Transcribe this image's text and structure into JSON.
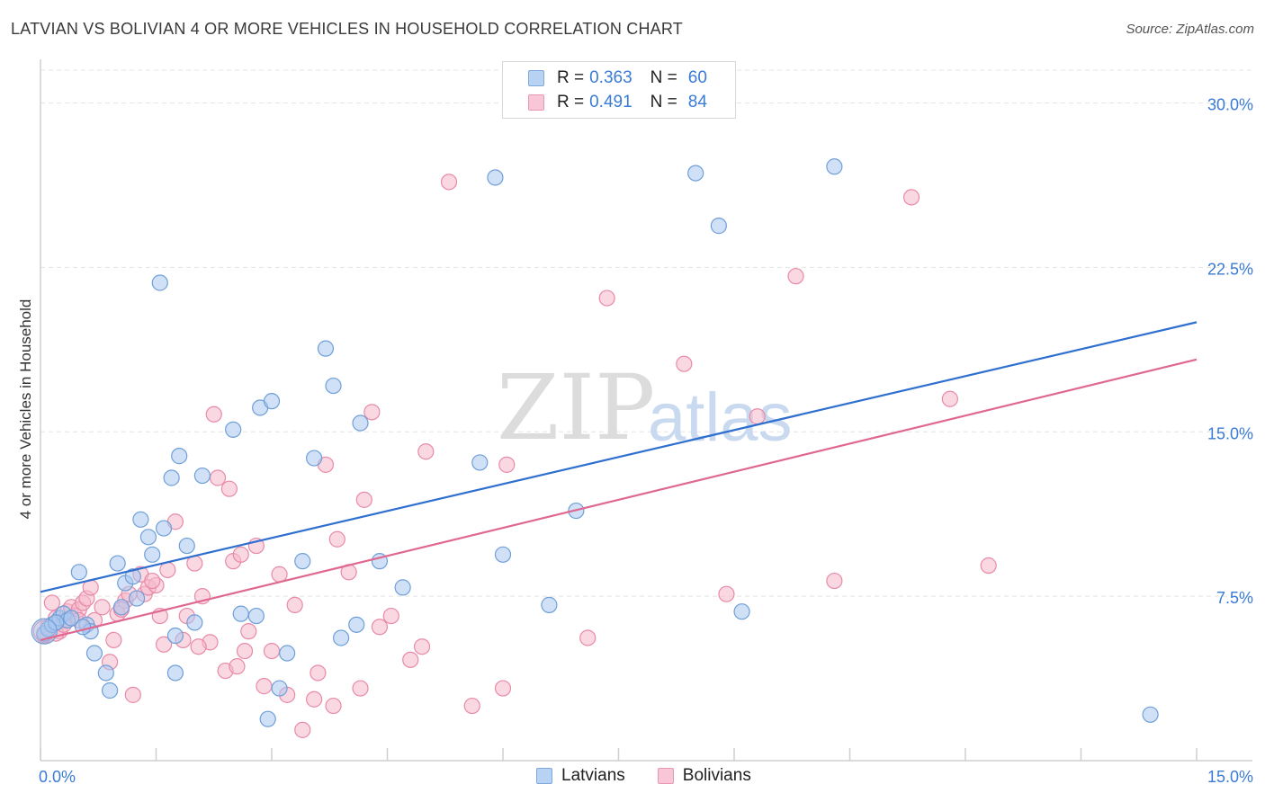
{
  "header": {
    "title": "LATVIAN VS BOLIVIAN 4 OR MORE VEHICLES IN HOUSEHOLD CORRELATION CHART",
    "source": "Source: ZipAtlas.com"
  },
  "legend": {
    "rows": [
      {
        "r_label": "R =",
        "r_value": "0.363",
        "n_label": "N =",
        "n_value": "60"
      },
      {
        "r_label": "R =",
        "r_value": "0.491",
        "n_label": "N =",
        "n_value": "84"
      }
    ]
  },
  "bottom_legend": {
    "latvians": "Latvians",
    "bolivians": "Bolivians"
  },
  "watermark": {
    "zip": "ZIP",
    "atlas": "atlas"
  },
  "colors": {
    "latvian_fill": "#a9c8f0",
    "latvian_stroke": "#6f9fd8",
    "latvian_line": "#2f6fd0",
    "bolivian_fill": "#f6b8cb",
    "bolivian_stroke": "#e88aa8",
    "bolivian_line": "#e06890",
    "tick_label": "#3a7bd5"
  },
  "chart_data": {
    "type": "scatter",
    "title": "LATVIAN VS BOLIVIAN 4 OR MORE VEHICLES IN HOUSEHOLD CORRELATION CHART",
    "xlabel": "",
    "ylabel": "4 or more Vehicles in Household",
    "xlim": [
      0,
      15
    ],
    "ylim": [
      0,
      31.5
    ],
    "x_tick_labels": [
      {
        "value": 0,
        "label": "0.0%"
      },
      {
        "value": 15,
        "label": "15.0%"
      }
    ],
    "y_tick_labels": [
      {
        "value": 7.5,
        "label": "7.5%"
      },
      {
        "value": 15,
        "label": "15.0%"
      },
      {
        "value": 22.5,
        "label": "22.5%"
      },
      {
        "value": 30,
        "label": "30.0%"
      }
    ],
    "grid": "horizontal dashed",
    "legend_position": "top-center",
    "series": [
      {
        "name": "Latvians",
        "r": 0.363,
        "n": 60,
        "trend": [
          [
            0,
            7.7
          ],
          [
            15,
            20.0
          ]
        ],
        "points": [
          [
            0.05,
            5.8
          ],
          [
            0.1,
            6.0
          ],
          [
            0.15,
            6.2
          ],
          [
            0.2,
            6.3
          ],
          [
            0.25,
            6.5
          ],
          [
            0.3,
            6.7
          ],
          [
            0.35,
            6.4
          ],
          [
            0.4,
            6.5
          ],
          [
            0.5,
            8.6
          ],
          [
            0.6,
            6.2
          ],
          [
            0.65,
            5.9
          ],
          [
            0.7,
            4.9
          ],
          [
            0.85,
            4.0
          ],
          [
            0.9,
            3.2
          ],
          [
            1.0,
            9.0
          ],
          [
            1.05,
            7.0
          ],
          [
            1.1,
            8.1
          ],
          [
            1.2,
            8.4
          ],
          [
            1.25,
            7.4
          ],
          [
            1.3,
            11.0
          ],
          [
            1.4,
            10.2
          ],
          [
            1.45,
            9.4
          ],
          [
            1.55,
            21.8
          ],
          [
            1.6,
            10.6
          ],
          [
            1.7,
            12.9
          ],
          [
            1.75,
            4.0
          ],
          [
            1.8,
            13.9
          ],
          [
            1.9,
            9.8
          ],
          [
            2.0,
            6.3
          ],
          [
            2.1,
            13.0
          ],
          [
            2.5,
            15.1
          ],
          [
            2.6,
            6.7
          ],
          [
            2.8,
            6.6
          ],
          [
            2.85,
            16.1
          ],
          [
            3.0,
            16.4
          ],
          [
            3.1,
            3.3
          ],
          [
            3.2,
            4.9
          ],
          [
            3.4,
            9.1
          ],
          [
            3.55,
            13.8
          ],
          [
            3.7,
            18.8
          ],
          [
            3.8,
            17.1
          ],
          [
            3.9,
            5.6
          ],
          [
            4.1,
            6.2
          ],
          [
            4.15,
            15.4
          ],
          [
            4.4,
            9.1
          ],
          [
            4.7,
            7.9
          ],
          [
            5.7,
            13.6
          ],
          [
            5.9,
            26.6
          ],
          [
            6.0,
            9.4
          ],
          [
            6.6,
            7.1
          ],
          [
            6.95,
            11.4
          ],
          [
            2.95,
            1.9
          ],
          [
            1.75,
            5.7
          ],
          [
            0.2,
            6.3
          ],
          [
            0.55,
            6.1
          ],
          [
            8.5,
            26.8
          ],
          [
            8.8,
            24.4
          ],
          [
            9.1,
            6.8
          ],
          [
            10.3,
            27.1
          ],
          [
            14.4,
            2.1
          ]
        ]
      },
      {
        "name": "Bolivians",
        "r": 0.491,
        "n": 84,
        "trend": [
          [
            0,
            5.5
          ],
          [
            15,
            18.3
          ]
        ],
        "points": [
          [
            0.05,
            5.7
          ],
          [
            0.1,
            6.1
          ],
          [
            0.15,
            7.2
          ],
          [
            0.2,
            6.5
          ],
          [
            0.25,
            5.9
          ],
          [
            0.3,
            6.4
          ],
          [
            0.35,
            6.8
          ],
          [
            0.4,
            7.0
          ],
          [
            0.45,
            6.6
          ],
          [
            0.5,
            6.9
          ],
          [
            0.55,
            7.2
          ],
          [
            0.6,
            7.4
          ],
          [
            0.65,
            7.9
          ],
          [
            0.7,
            6.4
          ],
          [
            0.8,
            7.0
          ],
          [
            0.9,
            4.5
          ],
          [
            0.95,
            5.5
          ],
          [
            1.0,
            6.7
          ],
          [
            1.1,
            7.3
          ],
          [
            1.15,
            7.6
          ],
          [
            1.2,
            3.0
          ],
          [
            1.3,
            8.5
          ],
          [
            1.35,
            7.6
          ],
          [
            1.4,
            7.9
          ],
          [
            1.5,
            8.0
          ],
          [
            1.55,
            6.6
          ],
          [
            1.6,
            5.3
          ],
          [
            1.65,
            8.7
          ],
          [
            1.75,
            10.9
          ],
          [
            1.85,
            5.5
          ],
          [
            1.9,
            6.6
          ],
          [
            2.0,
            9.0
          ],
          [
            2.1,
            7.5
          ],
          [
            2.2,
            5.4
          ],
          [
            2.25,
            15.8
          ],
          [
            2.3,
            12.9
          ],
          [
            2.4,
            4.1
          ],
          [
            2.45,
            12.4
          ],
          [
            2.5,
            9.1
          ],
          [
            2.55,
            4.3
          ],
          [
            2.6,
            9.4
          ],
          [
            2.7,
            5.9
          ],
          [
            2.8,
            9.8
          ],
          [
            2.9,
            3.4
          ],
          [
            3.0,
            5.0
          ],
          [
            3.1,
            8.5
          ],
          [
            3.2,
            3.0
          ],
          [
            3.3,
            7.1
          ],
          [
            3.4,
            1.4
          ],
          [
            3.6,
            4.0
          ],
          [
            3.7,
            13.5
          ],
          [
            3.8,
            2.5
          ],
          [
            3.85,
            10.1
          ],
          [
            4.0,
            8.6
          ],
          [
            4.15,
            3.3
          ],
          [
            4.2,
            11.9
          ],
          [
            4.3,
            15.9
          ],
          [
            4.4,
            6.1
          ],
          [
            4.55,
            6.6
          ],
          [
            4.8,
            4.6
          ],
          [
            4.95,
            5.2
          ],
          [
            5.0,
            14.1
          ],
          [
            5.3,
            26.4
          ],
          [
            5.6,
            2.5
          ],
          [
            6.0,
            3.3
          ],
          [
            6.05,
            13.5
          ],
          [
            7.1,
            5.6
          ],
          [
            7.35,
            21.1
          ],
          [
            8.35,
            18.1
          ],
          [
            8.9,
            7.6
          ],
          [
            9.3,
            15.7
          ],
          [
            9.8,
            22.1
          ],
          [
            10.3,
            8.2
          ],
          [
            11.3,
            25.7
          ],
          [
            11.8,
            16.5
          ],
          [
            12.3,
            8.9
          ],
          [
            0.2,
            5.8
          ],
          [
            0.3,
            6.2
          ],
          [
            0.5,
            6.4
          ],
          [
            1.05,
            6.9
          ],
          [
            1.45,
            8.2
          ],
          [
            2.05,
            5.2
          ],
          [
            2.65,
            5.0
          ],
          [
            3.55,
            2.8
          ]
        ]
      }
    ]
  }
}
